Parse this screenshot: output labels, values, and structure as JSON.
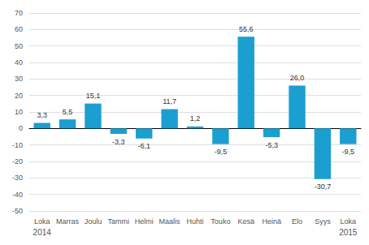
{
  "chart_data": {
    "type": "bar",
    "categories": [
      "Loka",
      "Marras",
      "Joulu",
      "Tammi",
      "Helmi",
      "Maalis",
      "Huhti",
      "Touko",
      "Kesä",
      "Heinä",
      "Elo",
      "Syys",
      "Loka"
    ],
    "values": [
      3.3,
      5.5,
      15.1,
      -3.3,
      -6.1,
      11.7,
      1.2,
      -9.5,
      55.6,
      -5.3,
      26.0,
      -30.7,
      -9.5
    ],
    "value_labels": [
      "3,3",
      "5,5",
      "15,1",
      "-3,3",
      "-6,1",
      "11,7",
      "1,2",
      "-9,5",
      "55,6",
      "-5,3",
      "26,0",
      "-30,7",
      "-9,5"
    ],
    "data_labels": true,
    "color": "#1b9fd0",
    "ylim": [
      -50,
      70
    ],
    "yticks": [
      -50,
      -40,
      -30,
      -20,
      -10,
      0,
      10,
      20,
      30,
      40,
      50,
      60,
      70
    ],
    "grid": true,
    "annotations": [
      {
        "text": "2014",
        "x": 0
      },
      {
        "text": "2015",
        "x": 12
      }
    ]
  }
}
